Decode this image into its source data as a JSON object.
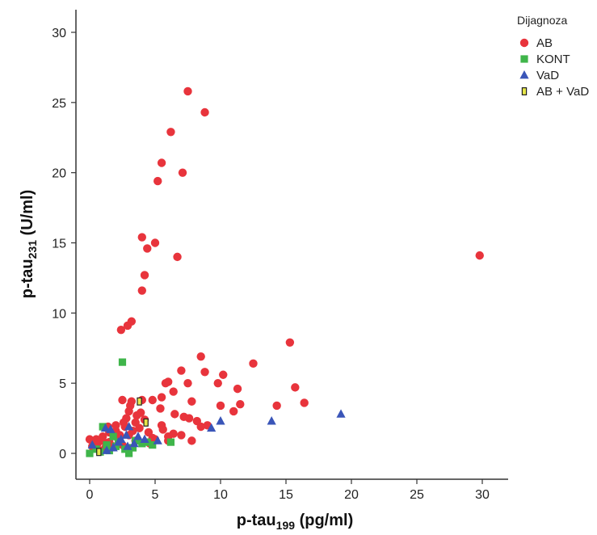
{
  "chart_data": {
    "type": "scatter",
    "xlabel": {
      "main": "p-tau",
      "sub": "199",
      "unit": " (pg/ml)"
    },
    "ylabel": {
      "main": "p-tau",
      "sub": "231",
      "unit": " (U/ml)"
    },
    "xlim": [
      -1,
      32
    ],
    "ylim": [
      -2,
      31.5
    ],
    "xticks": [
      0,
      5,
      10,
      15,
      20,
      25,
      30
    ],
    "yticks": [
      0,
      5,
      10,
      15,
      20,
      25,
      30
    ],
    "grid": false,
    "legend": {
      "title": "Dijagnoza",
      "placement": "top-right"
    },
    "series": [
      {
        "name": "AB",
        "marker": "circle",
        "color": "#e8343c",
        "points": [
          [
            7.5,
            25.8
          ],
          [
            8.8,
            24.3
          ],
          [
            6.2,
            22.9
          ],
          [
            5.5,
            20.7
          ],
          [
            7.1,
            20.0
          ],
          [
            5.2,
            19.4
          ],
          [
            4.0,
            15.4
          ],
          [
            5.0,
            15.0
          ],
          [
            4.4,
            14.6
          ],
          [
            6.7,
            14.0
          ],
          [
            29.8,
            14.1
          ],
          [
            4.2,
            12.7
          ],
          [
            4.0,
            11.6
          ],
          [
            3.2,
            9.4
          ],
          [
            2.9,
            9.1
          ],
          [
            2.4,
            8.8
          ],
          [
            15.3,
            7.9
          ],
          [
            8.5,
            6.9
          ],
          [
            12.5,
            6.4
          ],
          [
            7.0,
            5.9
          ],
          [
            8.8,
            5.8
          ],
          [
            10.2,
            5.6
          ],
          [
            6.0,
            5.1
          ],
          [
            5.8,
            5.0
          ],
          [
            7.5,
            5.0
          ],
          [
            9.8,
            5.0
          ],
          [
            15.7,
            4.7
          ],
          [
            11.3,
            4.6
          ],
          [
            6.4,
            4.4
          ],
          [
            5.5,
            4.0
          ],
          [
            7.8,
            3.7
          ],
          [
            16.4,
            3.6
          ],
          [
            14.3,
            3.4
          ],
          [
            11.5,
            3.5
          ],
          [
            10.0,
            3.4
          ],
          [
            4.0,
            3.8
          ],
          [
            4.8,
            3.8
          ],
          [
            2.5,
            3.8
          ],
          [
            3.2,
            3.7
          ],
          [
            5.4,
            3.2
          ],
          [
            6.5,
            2.8
          ],
          [
            7.2,
            2.6
          ],
          [
            7.6,
            2.5
          ],
          [
            8.2,
            2.3
          ],
          [
            11.0,
            3.0
          ],
          [
            9.0,
            2.0
          ],
          [
            8.5,
            1.9
          ],
          [
            7.0,
            1.3
          ],
          [
            7.8,
            0.9
          ],
          [
            6.0,
            1.2
          ],
          [
            4.5,
            1.5
          ],
          [
            5.5,
            2.0
          ],
          [
            6.0,
            0.9
          ],
          [
            3.0,
            3.0
          ],
          [
            2.8,
            2.5
          ],
          [
            3.5,
            2.2
          ],
          [
            3.8,
            1.8
          ],
          [
            2.0,
            2.0
          ],
          [
            1.5,
            1.5
          ],
          [
            1.0,
            1.2
          ],
          [
            0.5,
            1.0
          ],
          [
            0.0,
            1.0
          ],
          [
            0.2,
            0.5
          ],
          [
            1.5,
            0.8
          ],
          [
            2.2,
            1.0
          ],
          [
            3.0,
            1.3
          ],
          [
            3.5,
            0.9
          ],
          [
            2.5,
            0.6
          ],
          [
            1.8,
            0.5
          ],
          [
            0.8,
            0.2
          ],
          [
            4.2,
            2.4
          ],
          [
            4.8,
            1.1
          ],
          [
            3.3,
            1.6
          ],
          [
            2.7,
            1.9
          ],
          [
            1.2,
            0.4
          ],
          [
            2.0,
            1.6
          ],
          [
            3.6,
            2.7
          ],
          [
            4.6,
            0.7
          ],
          [
            5.0,
            1.0
          ],
          [
            3.9,
            2.9
          ],
          [
            2.3,
            1.3
          ],
          [
            1.4,
            1.9
          ],
          [
            0.6,
            0.7
          ],
          [
            2.6,
            2.2
          ],
          [
            3.1,
            3.4
          ],
          [
            5.6,
            1.7
          ],
          [
            6.4,
            1.4
          ],
          [
            1.0,
            0.9
          ]
        ]
      },
      {
        "name": "KONT",
        "marker": "square",
        "color": "#3fb54a",
        "points": [
          [
            2.5,
            6.5
          ],
          [
            1.0,
            1.9
          ],
          [
            0.0,
            0.0
          ],
          [
            0.5,
            0.3
          ],
          [
            1.3,
            0.6
          ],
          [
            2.0,
            0.5
          ],
          [
            3.0,
            0.0
          ],
          [
            2.7,
            0.3
          ],
          [
            3.5,
            0.9
          ],
          [
            4.0,
            0.7
          ],
          [
            4.8,
            0.6
          ],
          [
            6.2,
            0.8
          ],
          [
            1.8,
            1.2
          ],
          [
            0.8,
            0.1
          ],
          [
            2.2,
            0.8
          ],
          [
            3.3,
            0.4
          ],
          [
            4.4,
            0.8
          ],
          [
            1.5,
            0.2
          ]
        ]
      },
      {
        "name": "VaD",
        "marker": "triangle",
        "color": "#3a55b8",
        "points": [
          [
            19.2,
            2.8
          ],
          [
            13.9,
            2.3
          ],
          [
            10.0,
            2.3
          ],
          [
            9.3,
            1.8
          ],
          [
            3.0,
            1.9
          ],
          [
            2.4,
            1.0
          ],
          [
            1.2,
            1.8
          ],
          [
            1.6,
            1.7
          ],
          [
            3.7,
            1.2
          ],
          [
            4.2,
            1.0
          ],
          [
            0.2,
            0.6
          ],
          [
            2.8,
            1.3
          ],
          [
            1.3,
            0.2
          ],
          [
            2.9,
            0.5
          ],
          [
            5.2,
            0.9
          ],
          [
            3.4,
            0.7
          ],
          [
            2.2,
            0.8
          ],
          [
            1.8,
            0.4
          ]
        ]
      },
      {
        "name": "AB + VaD",
        "marker": "rect-outline",
        "color": "#e6e64a",
        "points": [
          [
            3.8,
            3.7
          ],
          [
            4.3,
            2.2
          ],
          [
            0.7,
            0.1
          ]
        ]
      }
    ]
  }
}
